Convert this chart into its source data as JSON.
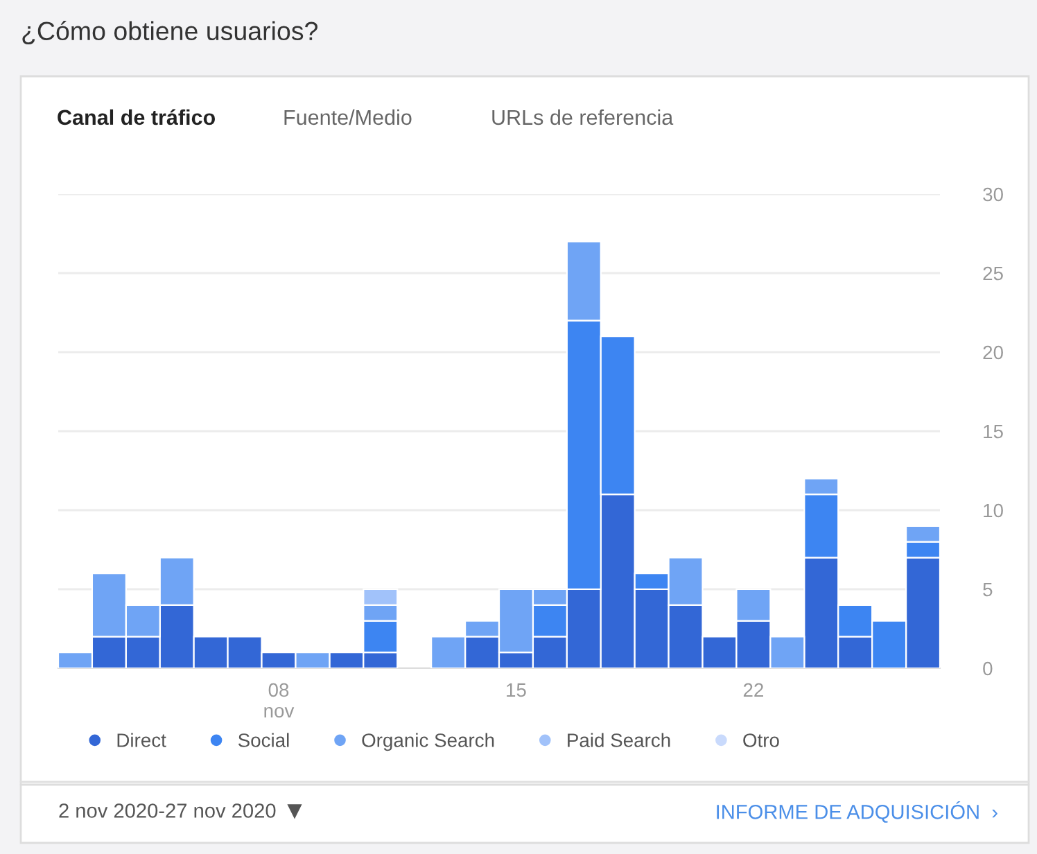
{
  "chart_data": {
    "type": "bar",
    "title": "¿Cómo obtiene usuarios?",
    "stacked": true,
    "categories": [
      null,
      null,
      null,
      null,
      null,
      null,
      "08\nnov",
      null,
      null,
      null,
      null,
      null,
      null,
      "15",
      null,
      null,
      null,
      null,
      null,
      null,
      "22",
      null,
      null,
      null,
      null,
      null
    ],
    "series": [
      {
        "name": "Direct",
        "color": "#3367d6",
        "values": [
          null,
          2,
          2,
          4,
          2,
          2,
          1,
          null,
          1,
          1,
          null,
          null,
          2,
          1,
          2,
          5,
          11,
          5,
          4,
          2,
          3,
          null,
          7,
          2,
          null,
          7
        ]
      },
      {
        "name": "Social",
        "color": "#3d85f2",
        "values": [
          null,
          null,
          null,
          null,
          null,
          null,
          null,
          null,
          null,
          2,
          null,
          null,
          null,
          null,
          2,
          17,
          10,
          1,
          null,
          null,
          null,
          null,
          4,
          2,
          3,
          1
        ]
      },
      {
        "name": "Organic Search",
        "color": "#6fa4f5",
        "values": [
          1,
          4,
          2,
          3,
          null,
          null,
          null,
          1,
          null,
          1,
          null,
          2,
          1,
          4,
          1,
          5,
          null,
          null,
          3,
          null,
          2,
          2,
          1,
          null,
          null,
          1
        ]
      },
      {
        "name": "Paid Search",
        "color": "#a1c2fa",
        "values": [
          null,
          null,
          null,
          null,
          null,
          null,
          null,
          null,
          null,
          1,
          null,
          null,
          null,
          null,
          null,
          null,
          null,
          null,
          null,
          null,
          null,
          null,
          null,
          null,
          null,
          null
        ]
      },
      {
        "name": "Otro",
        "color": "#c9dafc",
        "values": [
          null,
          null,
          null,
          null,
          null,
          null,
          null,
          null,
          null,
          null,
          null,
          null,
          null,
          null,
          null,
          null,
          null,
          null,
          null,
          null,
          null,
          null,
          null,
          null,
          null,
          null
        ]
      }
    ],
    "ylim": [
      0,
      30
    ],
    "yticks": [
      0,
      5,
      10,
      15,
      20,
      25,
      30
    ],
    "grid": "y",
    "legend": "bottom",
    "annotations": [
      "Canal de tráfico",
      "Fuente/Medio",
      "URLs de referencia",
      "2 nov 2020-27 nov 2020",
      "INFORME DE ADQUISICIÓN  ›"
    ]
  }
}
